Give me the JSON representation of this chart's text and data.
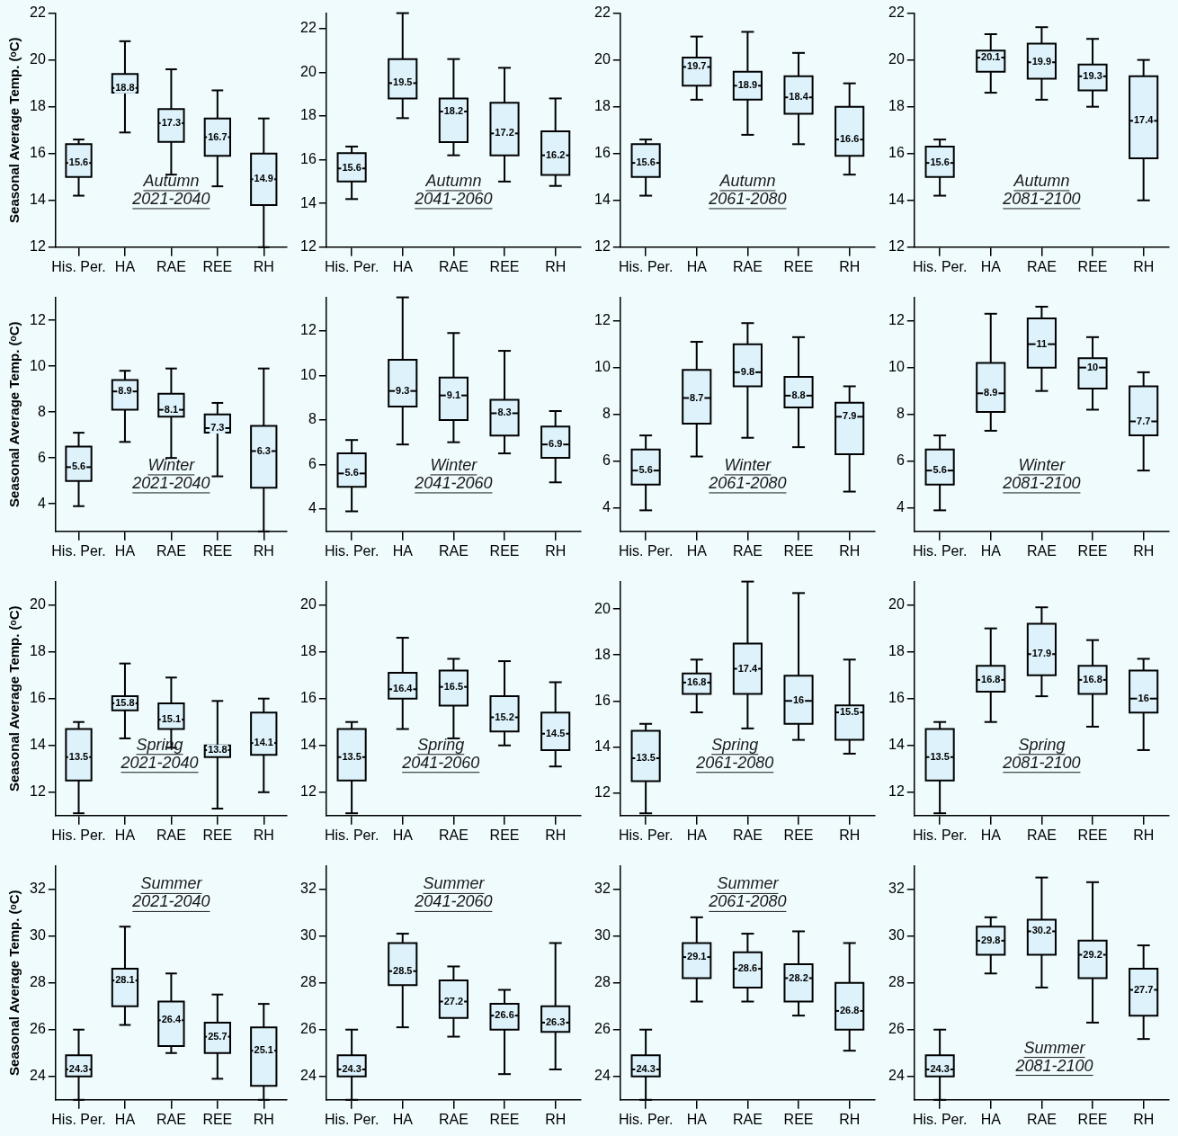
{
  "chart_data": [
    {
      "type": "box",
      "categories": [
        "His. Per.",
        "HA",
        "RAE",
        "REE",
        "RH"
      ],
      "ylabel": "Seasonal Average Temp. (ᵒC)",
      "color": "#ddf2fb",
      "ylim": [
        12,
        22
      ],
      "yticks": [
        12,
        14,
        16,
        18,
        20,
        22
      ],
      "annotations": [
        "Autumn",
        "2021-2040",
        {
          "text": "15.6",
          "x": "His. Per.",
          "y": 15.6
        },
        {
          "text": "18.8",
          "x": "HA",
          "y": 18.8
        },
        {
          "text": "17.3",
          "x": "RAE",
          "y": 17.3
        },
        {
          "text": "16.7",
          "x": "REE",
          "y": 16.7
        },
        {
          "text": "14.9",
          "x": "RH",
          "y": 14.9
        }
      ],
      "boxes": [
        {
          "low": 14.2,
          "q1": 15.0,
          "median": 15.6,
          "q3": 16.4,
          "high": 16.6
        },
        {
          "low": 16.9,
          "q1": 18.6,
          "median": 18.8,
          "q3": 19.4,
          "high": 20.8
        },
        {
          "low": 15.1,
          "q1": 16.5,
          "median": 17.3,
          "q3": 17.9,
          "high": 19.6
        },
        {
          "low": 14.6,
          "q1": 15.9,
          "median": 16.7,
          "q3": 17.5,
          "high": 18.7
        },
        {
          "low": 12.0,
          "q1": 13.8,
          "median": 14.9,
          "q3": 16.0,
          "high": 17.5
        }
      ]
    },
    {
      "type": "box",
      "categories": [
        "His. Per.",
        "HA",
        "RAE",
        "REE",
        "RH"
      ],
      "color": "#ddf2fb",
      "ylim": [
        12,
        22.7
      ],
      "yticks": [
        12,
        14,
        16,
        18,
        20,
        22
      ],
      "annotations": [
        "Autumn",
        "2041-2060",
        {
          "text": "15.6",
          "x": "His. Per.",
          "y": 15.6
        },
        {
          "text": "19.5",
          "x": "HA",
          "y": 19.5
        },
        {
          "text": "18.2",
          "x": "RAE",
          "y": 18.2
        },
        {
          "text": "17.2",
          "x": "REE",
          "y": 17.2
        },
        {
          "text": "16.2",
          "x": "RH",
          "y": 16.2
        }
      ],
      "boxes": [
        {
          "low": 14.2,
          "q1": 15.0,
          "median": 15.6,
          "q3": 16.3,
          "high": 16.6
        },
        {
          "low": 17.9,
          "q1": 18.8,
          "median": 19.5,
          "q3": 20.6,
          "high": 22.7
        },
        {
          "low": 16.2,
          "q1": 16.8,
          "median": 18.2,
          "q3": 18.8,
          "high": 20.6
        },
        {
          "low": 15.0,
          "q1": 16.2,
          "median": 17.2,
          "q3": 18.6,
          "high": 20.2
        },
        {
          "low": 14.8,
          "q1": 15.3,
          "median": 16.2,
          "q3": 17.3,
          "high": 18.8
        }
      ]
    },
    {
      "type": "box",
      "categories": [
        "His. Per.",
        "HA",
        "RAE",
        "REE",
        "RH"
      ],
      "color": "#ddf2fb",
      "ylim": [
        12,
        22
      ],
      "yticks": [
        12,
        14,
        16,
        18,
        20,
        22
      ],
      "annotations": [
        "Autumn",
        "2061-2080",
        {
          "text": "15.6",
          "x": "His. Per.",
          "y": 15.6
        },
        {
          "text": "19.7",
          "x": "HA",
          "y": 19.7
        },
        {
          "text": "18.9",
          "x": "RAE",
          "y": 18.9
        },
        {
          "text": "18.4",
          "x": "REE",
          "y": 18.4
        },
        {
          "text": "16.6",
          "x": "RH",
          "y": 16.6
        }
      ],
      "boxes": [
        {
          "low": 14.2,
          "q1": 15.0,
          "median": 15.6,
          "q3": 16.4,
          "high": 16.6
        },
        {
          "low": 18.3,
          "q1": 18.9,
          "median": 19.7,
          "q3": 20.1,
          "high": 21.0
        },
        {
          "low": 16.8,
          "q1": 18.3,
          "median": 18.9,
          "q3": 19.5,
          "high": 21.2
        },
        {
          "low": 16.4,
          "q1": 17.7,
          "median": 18.4,
          "q3": 19.3,
          "high": 20.3
        },
        {
          "low": 15.1,
          "q1": 15.9,
          "median": 16.6,
          "q3": 18.0,
          "high": 19.0
        }
      ]
    },
    {
      "type": "box",
      "categories": [
        "His. Per.",
        "HA",
        "RAE",
        "REE",
        "RH"
      ],
      "color": "#ddf2fb",
      "ylim": [
        12,
        22
      ],
      "yticks": [
        12,
        14,
        16,
        18,
        20,
        22
      ],
      "annotations": [
        "Autumn",
        "2081-2100",
        {
          "text": "15.6",
          "x": "His. Per.",
          "y": 15.6
        },
        {
          "text": "20.1",
          "x": "HA",
          "y": 20.1
        },
        {
          "text": "19.9",
          "x": "RAE",
          "y": 19.9
        },
        {
          "text": "19.3",
          "x": "REE",
          "y": 19.3
        },
        {
          "text": "17.4",
          "x": "RH",
          "y": 17.4
        }
      ],
      "boxes": [
        {
          "low": 14.2,
          "q1": 15.0,
          "median": 15.6,
          "q3": 16.3,
          "high": 16.6
        },
        {
          "low": 18.6,
          "q1": 19.5,
          "median": 20.1,
          "q3": 20.4,
          "high": 21.1
        },
        {
          "low": 18.3,
          "q1": 19.2,
          "median": 19.9,
          "q3": 20.7,
          "high": 21.4
        },
        {
          "low": 18.0,
          "q1": 18.7,
          "median": 19.3,
          "q3": 19.8,
          "high": 20.9
        },
        {
          "low": 14.0,
          "q1": 15.8,
          "median": 17.4,
          "q3": 19.3,
          "high": 20.0
        }
      ]
    },
    {
      "type": "box",
      "categories": [
        "His. Per.",
        "HA",
        "RAE",
        "REE",
        "RH"
      ],
      "ylabel": "Seasonal Average Temp. (ᵒC)",
      "color": "#ddf2fb",
      "ylim": [
        2.8,
        13
      ],
      "yticks": [
        4,
        6,
        8,
        10,
        12
      ],
      "annotations": [
        "Winter",
        "2021-2040",
        {
          "text": "5.6",
          "x": "His. Per.",
          "y": 5.6
        },
        {
          "text": "8.9",
          "x": "HA",
          "y": 8.9
        },
        {
          "text": "8.1",
          "x": "RAE",
          "y": 8.1
        },
        {
          "text": "7.3",
          "x": "REE",
          "y": 7.3
        },
        {
          "text": "6.3",
          "x": "RH",
          "y": 6.3
        }
      ],
      "boxes": [
        {
          "low": 3.9,
          "q1": 5.0,
          "median": 5.6,
          "q3": 6.5,
          "high": 7.1
        },
        {
          "low": 6.7,
          "q1": 8.1,
          "median": 8.9,
          "q3": 9.4,
          "high": 9.8
        },
        {
          "low": 6.0,
          "q1": 7.8,
          "median": 8.1,
          "q3": 8.8,
          "high": 9.9
        },
        {
          "low": 5.2,
          "q1": 7.1,
          "median": 7.3,
          "q3": 7.9,
          "high": 8.4
        },
        {
          "low": 2.8,
          "q1": 4.7,
          "median": 6.3,
          "q3": 7.4,
          "high": 9.9
        }
      ]
    },
    {
      "type": "box",
      "categories": [
        "His. Per.",
        "HA",
        "RAE",
        "REE",
        "RH"
      ],
      "color": "#ddf2fb",
      "ylim": [
        3,
        13.5
      ],
      "yticks": [
        4,
        6,
        8,
        10,
        12
      ],
      "annotations": [
        "Winter",
        "2041-2060",
        {
          "text": "5.6",
          "x": "His. Per.",
          "y": 5.6
        },
        {
          "text": "9.3",
          "x": "HA",
          "y": 9.3
        },
        {
          "text": "9.1",
          "x": "RAE",
          "y": 9.1
        },
        {
          "text": "8.3",
          "x": "REE",
          "y": 8.3
        },
        {
          "text": "6.9",
          "x": "RH",
          "y": 6.9
        }
      ],
      "boxes": [
        {
          "low": 3.9,
          "q1": 5.0,
          "median": 5.6,
          "q3": 6.5,
          "high": 7.1
        },
        {
          "low": 6.9,
          "q1": 8.6,
          "median": 9.3,
          "q3": 10.7,
          "high": 13.5
        },
        {
          "low": 7.0,
          "q1": 8.0,
          "median": 9.1,
          "q3": 9.9,
          "high": 11.9
        },
        {
          "low": 6.5,
          "q1": 7.3,
          "median": 8.3,
          "q3": 8.9,
          "high": 11.1
        },
        {
          "low": 5.2,
          "q1": 6.3,
          "median": 6.9,
          "q3": 7.7,
          "high": 8.4
        }
      ]
    },
    {
      "type": "box",
      "categories": [
        "His. Per.",
        "HA",
        "RAE",
        "REE",
        "RH"
      ],
      "color": "#ddf2fb",
      "ylim": [
        3,
        13
      ],
      "yticks": [
        4,
        6,
        8,
        10,
        12
      ],
      "annotations": [
        "Winter",
        "2061-2080",
        {
          "text": "5.6",
          "x": "His. Per.",
          "y": 5.6
        },
        {
          "text": "8.7",
          "x": "HA",
          "y": 8.7
        },
        {
          "text": "9.8",
          "x": "RAE",
          "y": 9.8
        },
        {
          "text": "8.8",
          "x": "REE",
          "y": 8.8
        },
        {
          "text": "7.9",
          "x": "RH",
          "y": 7.9
        }
      ],
      "boxes": [
        {
          "low": 3.9,
          "q1": 5.0,
          "median": 5.6,
          "q3": 6.5,
          "high": 7.1
        },
        {
          "low": 6.2,
          "q1": 7.6,
          "median": 8.7,
          "q3": 9.9,
          "high": 11.1
        },
        {
          "low": 7.0,
          "q1": 9.2,
          "median": 9.8,
          "q3": 11.0,
          "high": 11.9
        },
        {
          "low": 6.6,
          "q1": 8.3,
          "median": 8.8,
          "q3": 9.6,
          "high": 11.3
        },
        {
          "low": 4.7,
          "q1": 6.3,
          "median": 7.9,
          "q3": 8.5,
          "high": 9.2
        }
      ]
    },
    {
      "type": "box",
      "categories": [
        "His. Per.",
        "HA",
        "RAE",
        "REE",
        "RH"
      ],
      "color": "#ddf2fb",
      "ylim": [
        3,
        13
      ],
      "yticks": [
        4,
        6,
        8,
        10,
        12
      ],
      "annotations": [
        "Winter",
        "2081-2100",
        {
          "text": "5.6",
          "x": "His. Per.",
          "y": 5.6
        },
        {
          "text": "8.9",
          "x": "HA",
          "y": 8.9
        },
        {
          "text": "11",
          "x": "RAE",
          "y": 11
        },
        {
          "text": "10",
          "x": "REE",
          "y": 10
        },
        {
          "text": "7.7",
          "x": "RH",
          "y": 7.7
        }
      ],
      "boxes": [
        {
          "low": 3.9,
          "q1": 5.0,
          "median": 5.6,
          "q3": 6.5,
          "high": 7.1
        },
        {
          "low": 7.3,
          "q1": 8.1,
          "median": 8.9,
          "q3": 10.2,
          "high": 12.3
        },
        {
          "low": 9.0,
          "q1": 10.0,
          "median": 11,
          "q3": 12.1,
          "high": 12.6
        },
        {
          "low": 8.2,
          "q1": 9.1,
          "median": 10,
          "q3": 10.4,
          "high": 11.3
        },
        {
          "low": 5.6,
          "q1": 7.1,
          "median": 7.7,
          "q3": 9.2,
          "high": 9.8
        }
      ]
    },
    {
      "type": "box",
      "categories": [
        "His. Per.",
        "HA",
        "RAE",
        "REE",
        "RH"
      ],
      "ylabel": "Seasonal Average Temp. (ᵒC)",
      "color": "#ddf2fb",
      "ylim": [
        11,
        21
      ],
      "yticks": [
        12,
        14,
        16,
        18,
        20
      ],
      "annotations": [
        "Spring",
        "2021-2040",
        {
          "text": "13.5",
          "x": "His. Per.",
          "y": 13.5
        },
        {
          "text": "15.8",
          "x": "HA",
          "y": 15.8
        },
        {
          "text": "15.1",
          "x": "RAE",
          "y": 15.1
        },
        {
          "text": "13.8",
          "x": "REE",
          "y": 13.8
        },
        {
          "text": "14.1",
          "x": "RH",
          "y": 14.1
        }
      ],
      "boxes": [
        {
          "low": 11.1,
          "q1": 12.5,
          "median": 13.5,
          "q3": 14.7,
          "high": 15.0
        },
        {
          "low": 14.3,
          "q1": 15.5,
          "median": 15.8,
          "q3": 16.1,
          "high": 17.5
        },
        {
          "low": 13.9,
          "q1": 14.7,
          "median": 15.1,
          "q3": 15.8,
          "high": 16.9
        },
        {
          "low": 11.3,
          "q1": 13.5,
          "median": 13.8,
          "q3": 14.0,
          "high": 15.9
        },
        {
          "low": 12.0,
          "q1": 13.6,
          "median": 14.1,
          "q3": 15.4,
          "high": 16.0
        }
      ]
    },
    {
      "type": "box",
      "categories": [
        "His. Per.",
        "HA",
        "RAE",
        "REE",
        "RH"
      ],
      "color": "#ddf2fb",
      "ylim": [
        11,
        21
      ],
      "yticks": [
        12,
        14,
        16,
        18,
        20
      ],
      "annotations": [
        "Spring",
        "2041-2060",
        {
          "text": "13.5",
          "x": "His. Per.",
          "y": 13.5
        },
        {
          "text": "16.4",
          "x": "HA",
          "y": 16.4
        },
        {
          "text": "16.5",
          "x": "RAE",
          "y": 16.5
        },
        {
          "text": "15.2",
          "x": "REE",
          "y": 15.2
        },
        {
          "text": "14.5",
          "x": "RH",
          "y": 14.5
        }
      ],
      "boxes": [
        {
          "low": 11.1,
          "q1": 12.5,
          "median": 13.5,
          "q3": 14.7,
          "high": 15.0
        },
        {
          "low": 14.7,
          "q1": 16.0,
          "median": 16.4,
          "q3": 17.1,
          "high": 18.6
        },
        {
          "low": 14.3,
          "q1": 15.7,
          "median": 16.5,
          "q3": 17.2,
          "high": 17.7
        },
        {
          "low": 14.0,
          "q1": 14.6,
          "median": 15.2,
          "q3": 16.1,
          "high": 17.6
        },
        {
          "low": 13.1,
          "q1": 13.8,
          "median": 14.5,
          "q3": 15.4,
          "high": 16.7
        }
      ]
    },
    {
      "type": "box",
      "categories": [
        "His. Per.",
        "HA",
        "RAE",
        "REE",
        "RH"
      ],
      "color": "#ddf2fb",
      "ylim": [
        11,
        21.2
      ],
      "yticks": [
        12,
        14,
        16,
        18,
        20
      ],
      "annotations": [
        "Spring",
        "2061-2080",
        {
          "text": "13.5",
          "x": "His. Per.",
          "y": 13.5
        },
        {
          "text": "16.8",
          "x": "HA",
          "y": 16.8
        },
        {
          "text": "17.4",
          "x": "RAE",
          "y": 17.4
        },
        {
          "text": "16",
          "x": "REE",
          "y": 16
        },
        {
          "text": "15.5",
          "x": "RH",
          "y": 15.5
        }
      ],
      "boxes": [
        {
          "low": 11.1,
          "q1": 12.5,
          "median": 13.5,
          "q3": 14.7,
          "high": 15.0
        },
        {
          "low": 15.5,
          "q1": 16.3,
          "median": 16.8,
          "q3": 17.2,
          "high": 17.8
        },
        {
          "low": 14.8,
          "q1": 16.3,
          "median": 17.4,
          "q3": 18.5,
          "high": 21.2
        },
        {
          "low": 14.3,
          "q1": 15.0,
          "median": 16,
          "q3": 17.1,
          "high": 20.7
        },
        {
          "low": 13.7,
          "q1": 14.3,
          "median": 15.5,
          "q3": 15.8,
          "high": 17.8
        }
      ]
    },
    {
      "type": "box",
      "categories": [
        "His. Per.",
        "HA",
        "RAE",
        "REE",
        "RH"
      ],
      "color": "#ddf2fb",
      "ylim": [
        11,
        21
      ],
      "yticks": [
        12,
        14,
        16,
        18,
        20
      ],
      "annotations": [
        "Spring",
        "2081-2100",
        {
          "text": "13.5",
          "x": "His. Per.",
          "y": 13.5
        },
        {
          "text": "16.8",
          "x": "HA",
          "y": 16.8
        },
        {
          "text": "17.9",
          "x": "RAE",
          "y": 17.9
        },
        {
          "text": "16.8",
          "x": "REE",
          "y": 16.8
        },
        {
          "text": "16",
          "x": "RH",
          "y": 16
        }
      ],
      "boxes": [
        {
          "low": 11.1,
          "q1": 12.5,
          "median": 13.5,
          "q3": 14.7,
          "high": 15.0
        },
        {
          "low": 15.0,
          "q1": 16.3,
          "median": 16.8,
          "q3": 17.4,
          "high": 19.0
        },
        {
          "low": 16.1,
          "q1": 17.0,
          "median": 17.9,
          "q3": 19.2,
          "high": 19.9
        },
        {
          "low": 14.8,
          "q1": 16.2,
          "median": 16.8,
          "q3": 17.4,
          "high": 18.5
        },
        {
          "low": 13.8,
          "q1": 15.4,
          "median": 16,
          "q3": 17.2,
          "high": 17.7
        }
      ]
    },
    {
      "type": "box",
      "categories": [
        "His. Per.",
        "HA",
        "RAE",
        "REE",
        "RH"
      ],
      "ylabel": "Seasonal Average Temp. (ᵒC)",
      "color": "#ddf2fb",
      "ylim": [
        23,
        33
      ],
      "yticks": [
        24,
        26,
        28,
        30,
        32
      ],
      "annotations": [
        "Summer",
        "2021-2040",
        {
          "text": "24.3",
          "x": "His. Per.",
          "y": 24.3
        },
        {
          "text": "28.1",
          "x": "HA",
          "y": 28.1
        },
        {
          "text": "26.4",
          "x": "RAE",
          "y": 26.4
        },
        {
          "text": "25.7",
          "x": "REE",
          "y": 25.7
        },
        {
          "text": "25.1",
          "x": "RH",
          "y": 25.1
        }
      ],
      "boxes": [
        {
          "low": 23.0,
          "q1": 24.0,
          "median": 24.3,
          "q3": 24.9,
          "high": 26.0
        },
        {
          "low": 26.2,
          "q1": 27.0,
          "median": 28.1,
          "q3": 28.6,
          "high": 30.4
        },
        {
          "low": 25.0,
          "q1": 25.3,
          "median": 26.4,
          "q3": 27.2,
          "high": 28.4
        },
        {
          "low": 23.9,
          "q1": 25.0,
          "median": 25.7,
          "q3": 26.3,
          "high": 27.5
        },
        {
          "low": 23.0,
          "q1": 23.6,
          "median": 25.1,
          "q3": 26.1,
          "high": 27.1
        }
      ]
    },
    {
      "type": "box",
      "categories": [
        "His. Per.",
        "HA",
        "RAE",
        "REE",
        "RH"
      ],
      "color": "#ddf2fb",
      "ylim": [
        23,
        33
      ],
      "yticks": [
        24,
        26,
        28,
        30,
        32
      ],
      "annotations": [
        "Summer",
        "2041-2060",
        {
          "text": "24.3",
          "x": "His. Per.",
          "y": 24.3
        },
        {
          "text": "28.5",
          "x": "HA",
          "y": 28.5
        },
        {
          "text": "27.2",
          "x": "RAE",
          "y": 27.2
        },
        {
          "text": "26.6",
          "x": "REE",
          "y": 26.6
        },
        {
          "text": "26.3",
          "x": "RH",
          "y": 26.3
        }
      ],
      "boxes": [
        {
          "low": 23.0,
          "q1": 24.0,
          "median": 24.3,
          "q3": 24.9,
          "high": 26.0
        },
        {
          "low": 26.1,
          "q1": 27.9,
          "median": 28.5,
          "q3": 29.7,
          "high": 30.1
        },
        {
          "low": 25.7,
          "q1": 26.5,
          "median": 27.2,
          "q3": 28.1,
          "high": 28.7
        },
        {
          "low": 24.1,
          "q1": 26.0,
          "median": 26.6,
          "q3": 27.1,
          "high": 27.7
        },
        {
          "low": 24.3,
          "q1": 25.9,
          "median": 26.3,
          "q3": 27.0,
          "high": 29.7
        }
      ]
    },
    {
      "type": "box",
      "categories": [
        "His. Per.",
        "HA",
        "RAE",
        "REE",
        "RH"
      ],
      "color": "#ddf2fb",
      "ylim": [
        23,
        33
      ],
      "yticks": [
        24,
        26,
        28,
        30,
        32
      ],
      "annotations": [
        "Summer",
        "2061-2080",
        {
          "text": "24.3",
          "x": "His. Per.",
          "y": 24.3
        },
        {
          "text": "29.1",
          "x": "HA",
          "y": 29.1
        },
        {
          "text": "28.6",
          "x": "RAE",
          "y": 28.6
        },
        {
          "text": "28.2",
          "x": "REE",
          "y": 28.2
        },
        {
          "text": "26.8",
          "x": "RH",
          "y": 26.8
        }
      ],
      "boxes": [
        {
          "low": 23.0,
          "q1": 24.0,
          "median": 24.3,
          "q3": 24.9,
          "high": 26.0
        },
        {
          "low": 27.2,
          "q1": 28.2,
          "median": 29.1,
          "q3": 29.7,
          "high": 30.8
        },
        {
          "low": 27.2,
          "q1": 27.8,
          "median": 28.6,
          "q3": 29.3,
          "high": 30.1
        },
        {
          "low": 26.6,
          "q1": 27.2,
          "median": 28.2,
          "q3": 28.8,
          "high": 30.2
        },
        {
          "low": 25.1,
          "q1": 26.0,
          "median": 26.8,
          "q3": 28.0,
          "high": 29.7
        }
      ]
    },
    {
      "type": "box",
      "categories": [
        "His. Per.",
        "HA",
        "RAE",
        "REE",
        "RH"
      ],
      "color": "#ddf2fb",
      "ylim": [
        23,
        33
      ],
      "yticks": [
        24,
        26,
        28,
        30,
        32
      ],
      "annotations": [
        "Summer",
        "2081-2100",
        {
          "text": "24.3",
          "x": "His. Per.",
          "y": 24.3
        },
        {
          "text": "29.8",
          "x": "HA",
          "y": 29.8
        },
        {
          "text": "30.2",
          "x": "RAE",
          "y": 30.2
        },
        {
          "text": "29.2",
          "x": "REE",
          "y": 29.2
        },
        {
          "text": "27.7",
          "x": "RH",
          "y": 27.7
        }
      ],
      "boxes": [
        {
          "low": 23.0,
          "q1": 24.0,
          "median": 24.3,
          "q3": 24.9,
          "high": 26.0
        },
        {
          "low": 28.4,
          "q1": 29.2,
          "median": 29.8,
          "q3": 30.4,
          "high": 30.8
        },
        {
          "low": 27.8,
          "q1": 29.2,
          "median": 30.2,
          "q3": 30.7,
          "high": 32.5
        },
        {
          "low": 26.3,
          "q1": 28.2,
          "median": 29.2,
          "q3": 29.8,
          "high": 32.3
        },
        {
          "low": 25.6,
          "q1": 26.6,
          "median": 27.7,
          "q3": 28.6,
          "high": 29.6
        }
      ]
    }
  ]
}
